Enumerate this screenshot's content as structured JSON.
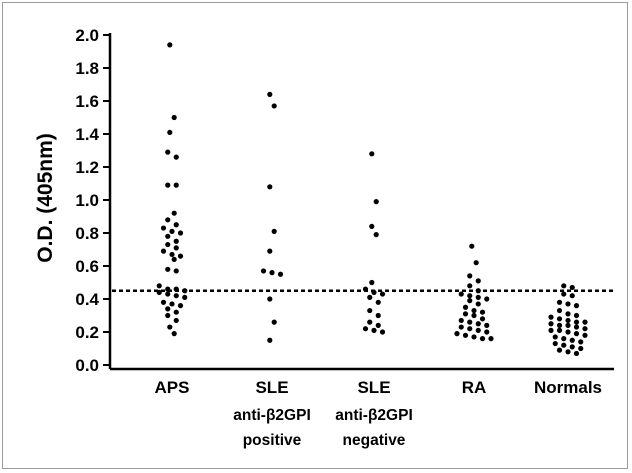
{
  "chart_data": {
    "type": "scatter",
    "title": "",
    "xlabel": "",
    "ylabel": "O.D. (405nm)",
    "ylim": [
      0.0,
      2.0
    ],
    "yticks": [
      "0.0",
      "0.2",
      "0.4",
      "0.6",
      "0.8",
      "1.0",
      "1.2",
      "1.4",
      "1.6",
      "1.8",
      "2.0"
    ],
    "grid": false,
    "legend": "none",
    "cutoff": 0.45,
    "point_color": "#000000",
    "categories": [
      {
        "label": "APS",
        "sublabel": [
          "",
          ""
        ]
      },
      {
        "label": "SLE",
        "sublabel": [
          "anti-β2GPI",
          "positive"
        ]
      },
      {
        "label": "SLE",
        "sublabel": [
          "anti-β2GPI",
          "negative"
        ]
      },
      {
        "label": "RA",
        "sublabel": [
          "",
          ""
        ]
      },
      {
        "label": "Normals",
        "sublabel": [
          "",
          ""
        ]
      }
    ],
    "series": [
      {
        "values": [
          1.94,
          1.5,
          1.41,
          1.29,
          1.26,
          1.09,
          1.09,
          0.92,
          0.88,
          0.85,
          0.83,
          0.81,
          0.8,
          0.78,
          0.75,
          0.73,
          0.69,
          0.66,
          0.64,
          0.58,
          0.57,
          0.48,
          0.46,
          0.46,
          0.45,
          0.44,
          0.42,
          0.37,
          0.36,
          0.34,
          0.32,
          0.3,
          0.27,
          0.23,
          0.19,
          0.43,
          0.71,
          0.67,
          0.41,
          0.38
        ]
      },
      {
        "values": [
          1.64,
          1.57,
          1.08,
          0.81,
          0.69,
          0.57,
          0.56,
          0.55,
          0.4,
          0.26,
          0.15
        ]
      },
      {
        "values": [
          1.28,
          0.99,
          0.84,
          0.79,
          0.5,
          0.46,
          0.44,
          0.43,
          0.41,
          0.38,
          0.33,
          0.3,
          0.26,
          0.24,
          0.22,
          0.21,
          0.2
        ]
      },
      {
        "values": [
          0.72,
          0.62,
          0.54,
          0.51,
          0.48,
          0.45,
          0.43,
          0.42,
          0.41,
          0.4,
          0.39,
          0.37,
          0.35,
          0.33,
          0.32,
          0.31,
          0.3,
          0.28,
          0.27,
          0.26,
          0.25,
          0.24,
          0.23,
          0.22,
          0.21,
          0.2,
          0.19,
          0.18,
          0.17,
          0.16,
          0.16
        ]
      },
      {
        "values": [
          0.48,
          0.47,
          0.43,
          0.42,
          0.38,
          0.37,
          0.36,
          0.33,
          0.31,
          0.3,
          0.29,
          0.28,
          0.27,
          0.26,
          0.26,
          0.25,
          0.24,
          0.23,
          0.22,
          0.21,
          0.2,
          0.19,
          0.18,
          0.17,
          0.16,
          0.15,
          0.14,
          0.13,
          0.12,
          0.11,
          0.1,
          0.09,
          0.08,
          0.07,
          0.21,
          0.24
        ]
      }
    ]
  }
}
